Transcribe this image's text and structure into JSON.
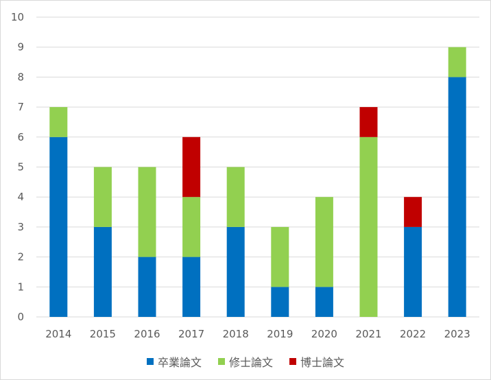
{
  "chart_data": {
    "type": "bar",
    "stacked": true,
    "categories": [
      "2014",
      "2015",
      "2016",
      "2017",
      "2018",
      "2019",
      "2020",
      "2021",
      "2022",
      "2023"
    ],
    "series": [
      {
        "name": "卒業論文",
        "color": "#0070C0",
        "values": [
          6,
          3,
          2,
          2,
          3,
          1,
          1,
          0,
          3,
          8
        ]
      },
      {
        "name": "修士論文",
        "color": "#92D050",
        "values": [
          1,
          2,
          3,
          2,
          2,
          2,
          3,
          6,
          0,
          1
        ]
      },
      {
        "name": "博士論文",
        "color": "#C00000",
        "values": [
          0,
          0,
          0,
          2,
          0,
          0,
          0,
          1,
          1,
          0
        ]
      }
    ],
    "yticks": [
      "0",
      "1",
      "2",
      "3",
      "4",
      "5",
      "6",
      "7",
      "8",
      "9",
      "10"
    ],
    "ylim": [
      0,
      10
    ],
    "grid": true,
    "legend_position": "bottom",
    "title": "",
    "xlabel": "",
    "ylabel": ""
  },
  "legend": {
    "items": [
      {
        "label": "卒業論文",
        "color": "#0070C0"
      },
      {
        "label": "修士論文",
        "color": "#92D050"
      },
      {
        "label": "博士論文",
        "color": "#C00000"
      }
    ]
  }
}
